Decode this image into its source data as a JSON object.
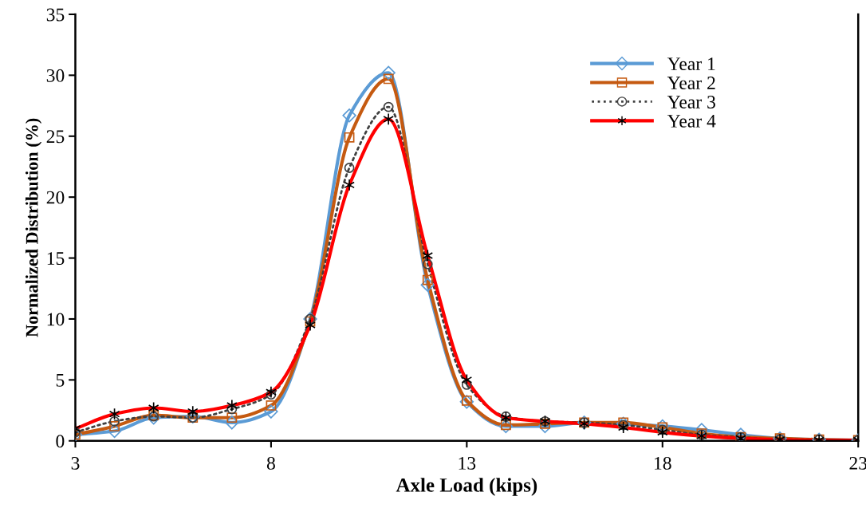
{
  "chart_data": {
    "type": "line",
    "xlabel": "Axle Load (kips)",
    "ylabel": "Normalized Distribution (%)",
    "x": [
      3,
      4,
      5,
      6,
      7,
      8,
      9,
      10,
      11,
      12,
      13,
      14,
      15,
      16,
      17,
      18,
      19,
      20,
      21,
      22,
      23
    ],
    "series": [
      {
        "name": "Year 1",
        "color": "#5b9bd5",
        "marker": "diamond",
        "line_style": "solid",
        "values": [
          0.5,
          0.8,
          1.9,
          2.0,
          1.5,
          2.4,
          10.0,
          26.7,
          30.2,
          12.8,
          3.2,
          1.2,
          1.2,
          1.5,
          1.4,
          1.2,
          0.9,
          0.5,
          0.2,
          0.1,
          0.05
        ]
      },
      {
        "name": "Year 2",
        "color": "#c55a11",
        "marker": "square",
        "line_style": "solid",
        "values": [
          0.5,
          1.2,
          2.1,
          1.9,
          1.9,
          2.9,
          9.8,
          24.9,
          29.7,
          13.2,
          3.3,
          1.3,
          1.4,
          1.5,
          1.5,
          1.1,
          0.6,
          0.3,
          0.2,
          0.1,
          0.05
        ]
      },
      {
        "name": "Year 3",
        "color": "#404040",
        "marker": "circle",
        "line_style": "dotted",
        "values": [
          0.7,
          1.6,
          2.0,
          1.9,
          2.6,
          3.8,
          10.0,
          22.4,
          27.4,
          14.5,
          4.6,
          2.0,
          1.6,
          1.5,
          1.3,
          0.9,
          0.5,
          0.3,
          0.1,
          0.1,
          0.05
        ]
      },
      {
        "name": "Year 4",
        "color": "#ff0000",
        "marker": "cross",
        "line_style": "solid",
        "values": [
          1.0,
          2.2,
          2.7,
          2.4,
          2.9,
          4.0,
          9.5,
          21.0,
          26.4,
          15.2,
          5.0,
          1.9,
          1.6,
          1.4,
          1.1,
          0.7,
          0.4,
          0.2,
          0.1,
          0.05,
          0.05
        ]
      }
    ],
    "xlim": [
      3,
      23
    ],
    "xticks": [
      3,
      8,
      13,
      18,
      23
    ],
    "ylim": [
      0,
      35
    ],
    "yticks": [
      0,
      5,
      10,
      15,
      20,
      25,
      30,
      35
    ],
    "grid": false,
    "legend": "top right"
  }
}
